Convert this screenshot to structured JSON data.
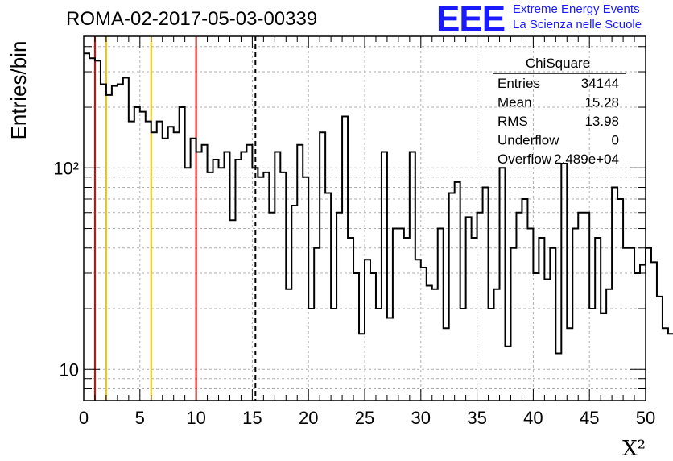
{
  "header": {
    "title": "ROMA-02-2017-05-03-00339",
    "logo_text": "EEE",
    "logo_line1": "Extreme Energy Events",
    "logo_line2": "La Scienza nelle Scuole"
  },
  "colors": {
    "histogram": "#000000",
    "red_line": "#e60000",
    "yellow_line": "#f2c200",
    "mean_line": "#000000",
    "grid": "#b0b0b0",
    "logo": "#1a1aff"
  },
  "stats_box": {
    "title": "ChiSquare",
    "rows": [
      {
        "label": "Entries",
        "value": "34144"
      },
      {
        "label": "Mean",
        "value": "15.28"
      },
      {
        "label": "RMS",
        "value": "13.98"
      },
      {
        "label": "Underflow",
        "value": "0"
      },
      {
        "label": "Overflow",
        "value": "2.489e+04"
      }
    ]
  },
  "chart_data": {
    "type": "histogram",
    "title": "ROMA-02-2017-05-03-00339",
    "xlabel": "X²",
    "ylabel": "Entries/bin",
    "xlim": [
      0,
      50
    ],
    "ylim": [
      7,
      450
    ],
    "yscale": "log",
    "grid": true,
    "bin_width": 0.5,
    "x_ticks": [
      0,
      5,
      10,
      15,
      20,
      25,
      30,
      35,
      40,
      45,
      50
    ],
    "y_tick_labels": [
      {
        "value": 10,
        "label": "10"
      },
      {
        "value": 100,
        "label": "10²"
      }
    ],
    "values": [
      370,
      350,
      340,
      260,
      230,
      255,
      260,
      280,
      170,
      200,
      190,
      170,
      150,
      170,
      140,
      160,
      150,
      200,
      100,
      140,
      120,
      130,
      95,
      110,
      100,
      120,
      55,
      110,
      120,
      130,
      100,
      90,
      95,
      60,
      120,
      95,
      25,
      65,
      130,
      90,
      20,
      40,
      150,
      75,
      20,
      60,
      180,
      45,
      30,
      15,
      35,
      30,
      20,
      120,
      18,
      50,
      50,
      45,
      120,
      35,
      32,
      26,
      25,
      50,
      16,
      75,
      85,
      20,
      57,
      45,
      60,
      80,
      20,
      25,
      100,
      13,
      40,
      60,
      70,
      50,
      30,
      45,
      28,
      40,
      12,
      105,
      16,
      50,
      60,
      60,
      20,
      45,
      19,
      25,
      80,
      70,
      40,
      40,
      30,
      33,
      40,
      34,
      23,
      16,
      15
    ],
    "vertical_lines": [
      {
        "x": 1,
        "color": "red",
        "style": "solid"
      },
      {
        "x": 10,
        "color": "red",
        "style": "solid"
      },
      {
        "x": 2,
        "color": "yellow",
        "style": "solid"
      },
      {
        "x": 6,
        "color": "yellow",
        "style": "solid"
      },
      {
        "x": 15.28,
        "color": "black",
        "style": "dashed"
      }
    ]
  }
}
